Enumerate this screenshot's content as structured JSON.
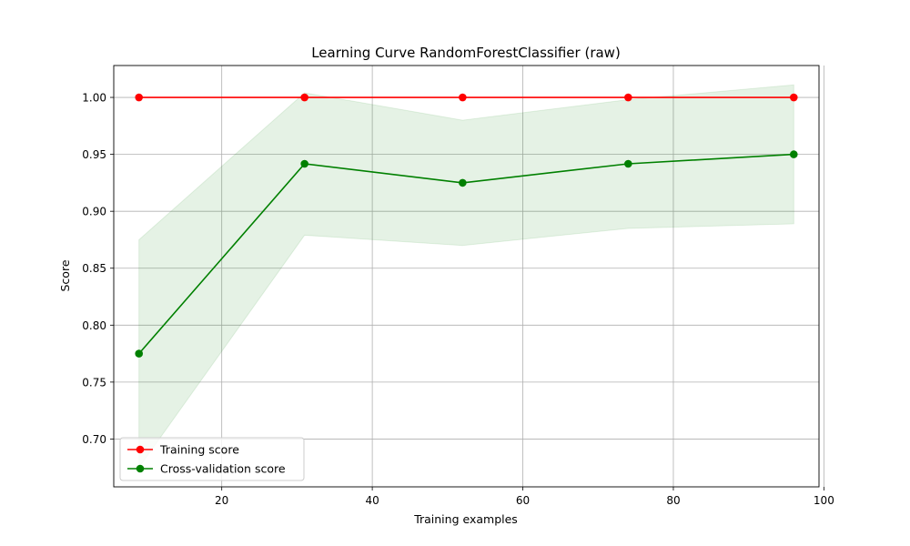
{
  "chart_data": {
    "type": "line",
    "title": "Learning Curve RandomForestClassifier (raw)",
    "xlabel": "Training examples",
    "ylabel": "Score",
    "x": [
      9,
      31,
      52,
      74,
      96
    ],
    "xlim": [
      5.65,
      99.35
    ],
    "ylim": [
      0.658,
      1.028
    ],
    "xticks": [
      20,
      40,
      60,
      80,
      100
    ],
    "yticks": [
      0.7,
      0.75,
      0.8,
      0.85,
      0.9,
      0.95,
      1.0
    ],
    "xtick_labels": [
      "20",
      "40",
      "60",
      "80",
      "100"
    ],
    "ytick_labels": [
      "0.70",
      "0.75",
      "0.80",
      "0.85",
      "0.90",
      "0.95",
      "1.00"
    ],
    "grid": true,
    "legend_position": "lower-left",
    "series": [
      {
        "name": "Training score",
        "color": "#ff0000",
        "values": [
          1.0,
          1.0,
          1.0,
          1.0,
          1.0
        ],
        "band_lower": [
          1.0,
          1.0,
          1.0,
          1.0,
          1.0
        ],
        "band_upper": [
          1.0,
          1.0,
          1.0,
          1.0,
          1.0
        ]
      },
      {
        "name": "Cross-validation score",
        "color": "#008000",
        "values": [
          0.775,
          0.9417,
          0.925,
          0.9417,
          0.95
        ],
        "band_lower": [
          0.675,
          0.879,
          0.87,
          0.885,
          0.889
        ],
        "band_upper": [
          0.875,
          1.004,
          0.98,
          0.998,
          1.011
        ]
      }
    ]
  }
}
